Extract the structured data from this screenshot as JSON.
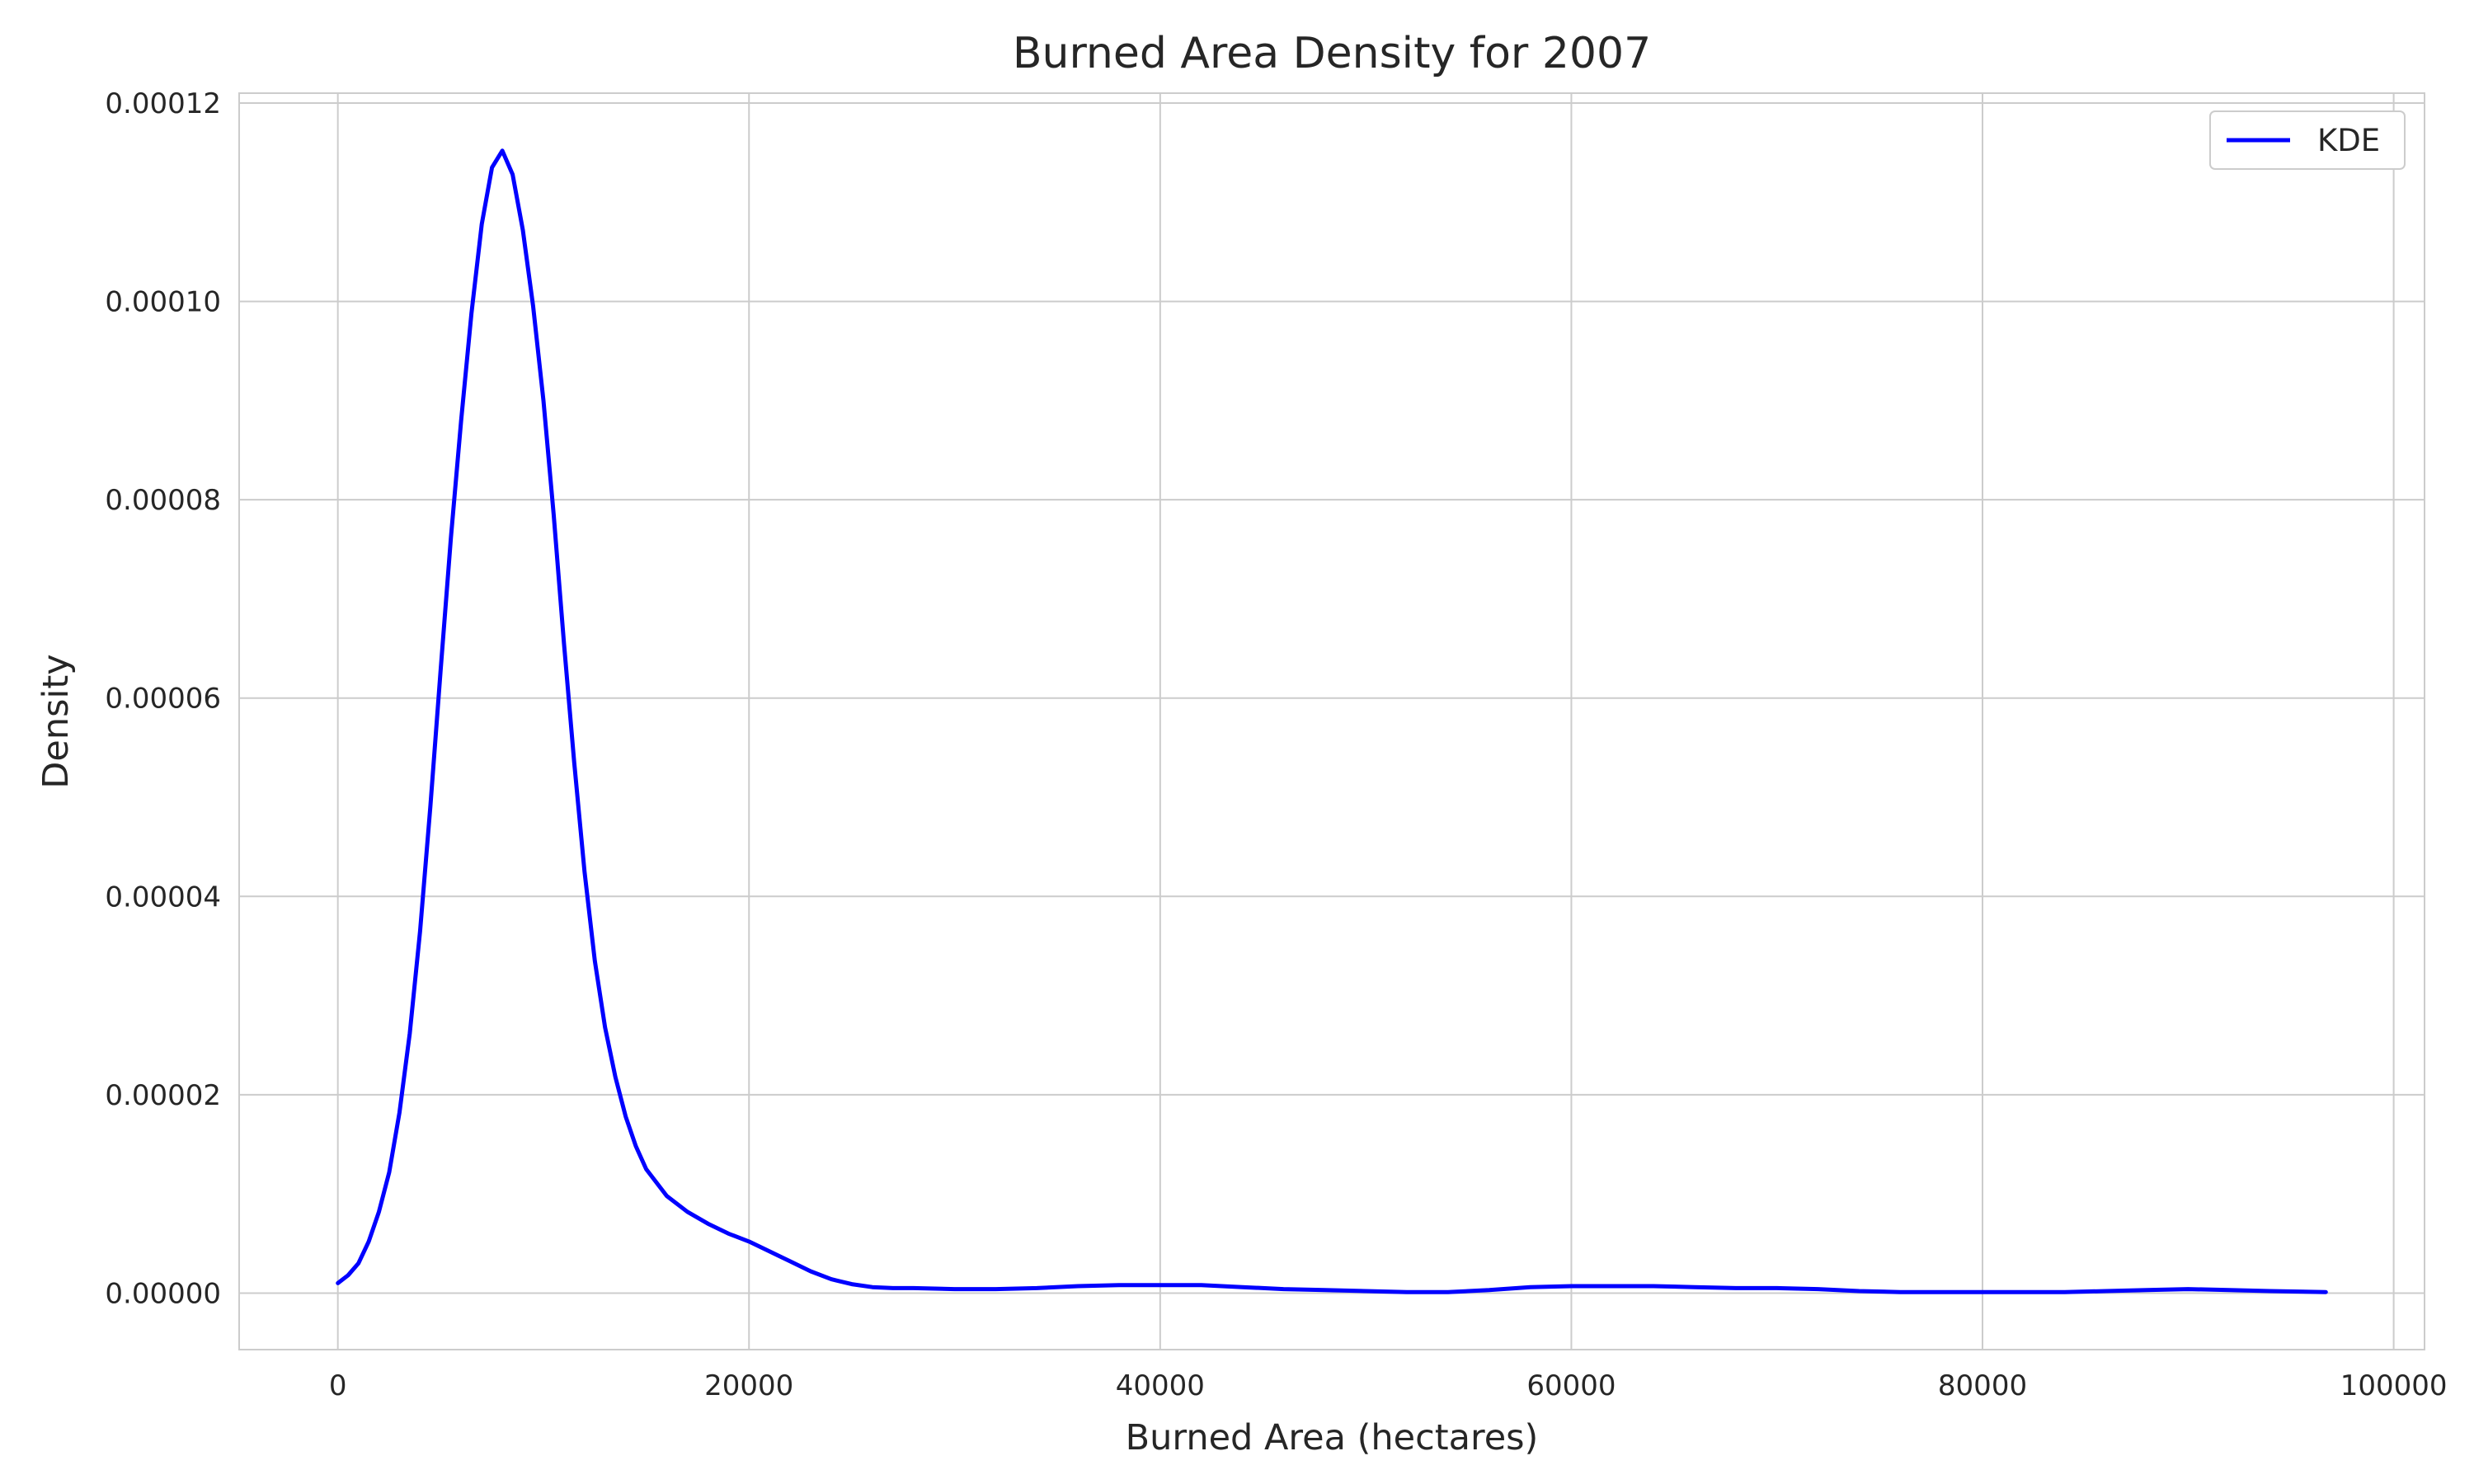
{
  "chart_data": {
    "type": "line",
    "title": "Burned Area Density for 2007",
    "xlabel": "Burned Area (hectares)",
    "ylabel": "Density",
    "xlim": [
      -4800,
      101500
    ],
    "ylim": [
      -5.7e-06,
      0.000121
    ],
    "x_ticks": [
      0,
      20000,
      40000,
      60000,
      80000,
      100000
    ],
    "x_tick_labels": [
      "0",
      "20000",
      "40000",
      "60000",
      "80000",
      "100000"
    ],
    "y_ticks": [
      0,
      2e-05,
      4e-05,
      6e-05,
      8e-05,
      0.0001,
      0.00012
    ],
    "y_tick_labels": [
      "0.00000",
      "0.00002",
      "0.00004",
      "0.00006",
      "0.00008",
      "0.00010",
      "0.00012"
    ],
    "grid": true,
    "legend_position": "top-right",
    "series": [
      {
        "name": "KDE",
        "color": "#0000ff",
        "x": [
          0,
          500,
          1000,
          1500,
          2000,
          2500,
          3000,
          3500,
          4000,
          4500,
          5000,
          5500,
          6000,
          6500,
          7000,
          7500,
          8000,
          8500,
          9000,
          9500,
          10000,
          10500,
          11000,
          11500,
          12000,
          12500,
          13000,
          13500,
          14000,
          14500,
          15000,
          16000,
          17000,
          18000,
          19000,
          20000,
          21000,
          22000,
          23000,
          24000,
          25000,
          26000,
          27000,
          28000,
          30000,
          32000,
          34000,
          36000,
          38000,
          40000,
          42000,
          44000,
          46000,
          48000,
          50000,
          52000,
          54000,
          56000,
          58000,
          60000,
          62000,
          64000,
          66000,
          68000,
          70000,
          72000,
          74000,
          76000,
          78000,
          80000,
          82000,
          84000,
          86000,
          88000,
          90000,
          92000,
          94000,
          96700
        ],
        "values": [
          1e-06,
          1.8e-06,
          3e-06,
          5.2e-06,
          8.2e-06,
          1.22e-05,
          1.82e-05,
          2.62e-05,
          3.65e-05,
          4.9e-05,
          6.28e-05,
          7.62e-05,
          8.8e-05,
          9.88e-05,
          0.0001078,
          0.0001135,
          0.0001152,
          0.0001128,
          0.0001072,
          9.95e-05,
          9e-05,
          7.85e-05,
          6.55e-05,
          5.35e-05,
          4.25e-05,
          3.35e-05,
          2.68e-05,
          2.18e-05,
          1.78e-05,
          1.48e-05,
          1.25e-05,
          9.8e-06,
          8.2e-06,
          7e-06,
          6e-06,
          5.2e-06,
          4.2e-06,
          3.2e-06,
          2.2e-06,
          1.4e-06,
          9e-07,
          6e-07,
          5e-07,
          5e-07,
          4e-07,
          4e-07,
          5e-07,
          7e-07,
          8e-07,
          8e-07,
          8e-07,
          6e-07,
          4e-07,
          3e-07,
          2e-07,
          1e-07,
          1e-07,
          3e-07,
          6e-07,
          7e-07,
          7e-07,
          7e-07,
          6e-07,
          5e-07,
          5e-07,
          4e-07,
          2e-07,
          1e-07,
          1e-07,
          1e-07,
          1e-07,
          1e-07,
          2e-07,
          3e-07,
          4e-07,
          3e-07,
          2e-07,
          1e-07
        ]
      }
    ]
  }
}
